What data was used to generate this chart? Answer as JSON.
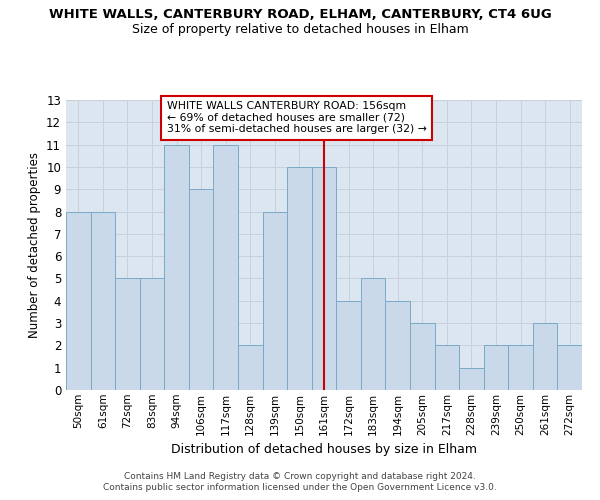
{
  "title": "WHITE WALLS, CANTERBURY ROAD, ELHAM, CANTERBURY, CT4 6UG",
  "subtitle": "Size of property relative to detached houses in Elham",
  "xlabel": "Distribution of detached houses by size in Elham",
  "ylabel": "Number of detached properties",
  "categories": [
    "50sqm",
    "61sqm",
    "72sqm",
    "83sqm",
    "94sqm",
    "106sqm",
    "117sqm",
    "128sqm",
    "139sqm",
    "150sqm",
    "161sqm",
    "172sqm",
    "183sqm",
    "194sqm",
    "205sqm",
    "217sqm",
    "228sqm",
    "239sqm",
    "250sqm",
    "261sqm",
    "272sqm"
  ],
  "values": [
    8,
    8,
    5,
    5,
    11,
    9,
    11,
    2,
    8,
    10,
    10,
    4,
    5,
    4,
    3,
    2,
    1,
    2,
    2,
    3,
    2
  ],
  "bar_color": "#c9d9ea",
  "bar_edge_color": "#7aaac8",
  "vline_index": 10,
  "vline_color": "#cc0000",
  "ylim": [
    0,
    13
  ],
  "yticks": [
    0,
    1,
    2,
    3,
    4,
    5,
    6,
    7,
    8,
    9,
    10,
    11,
    12,
    13
  ],
  "annotation_title": "WHITE WALLS CANTERBURY ROAD: 156sqm",
  "annotation_line1": "← 69% of detached houses are smaller (72)",
  "annotation_line2": "31% of semi-detached houses are larger (32) →",
  "annotation_box_color": "#ffffff",
  "annotation_box_edge": "#cc0000",
  "footnote1": "Contains HM Land Registry data © Crown copyright and database right 2024.",
  "footnote2": "Contains public sector information licensed under the Open Government Licence v3.0.",
  "grid_color": "#c8d0dc",
  "background_color": "#dce6f0"
}
